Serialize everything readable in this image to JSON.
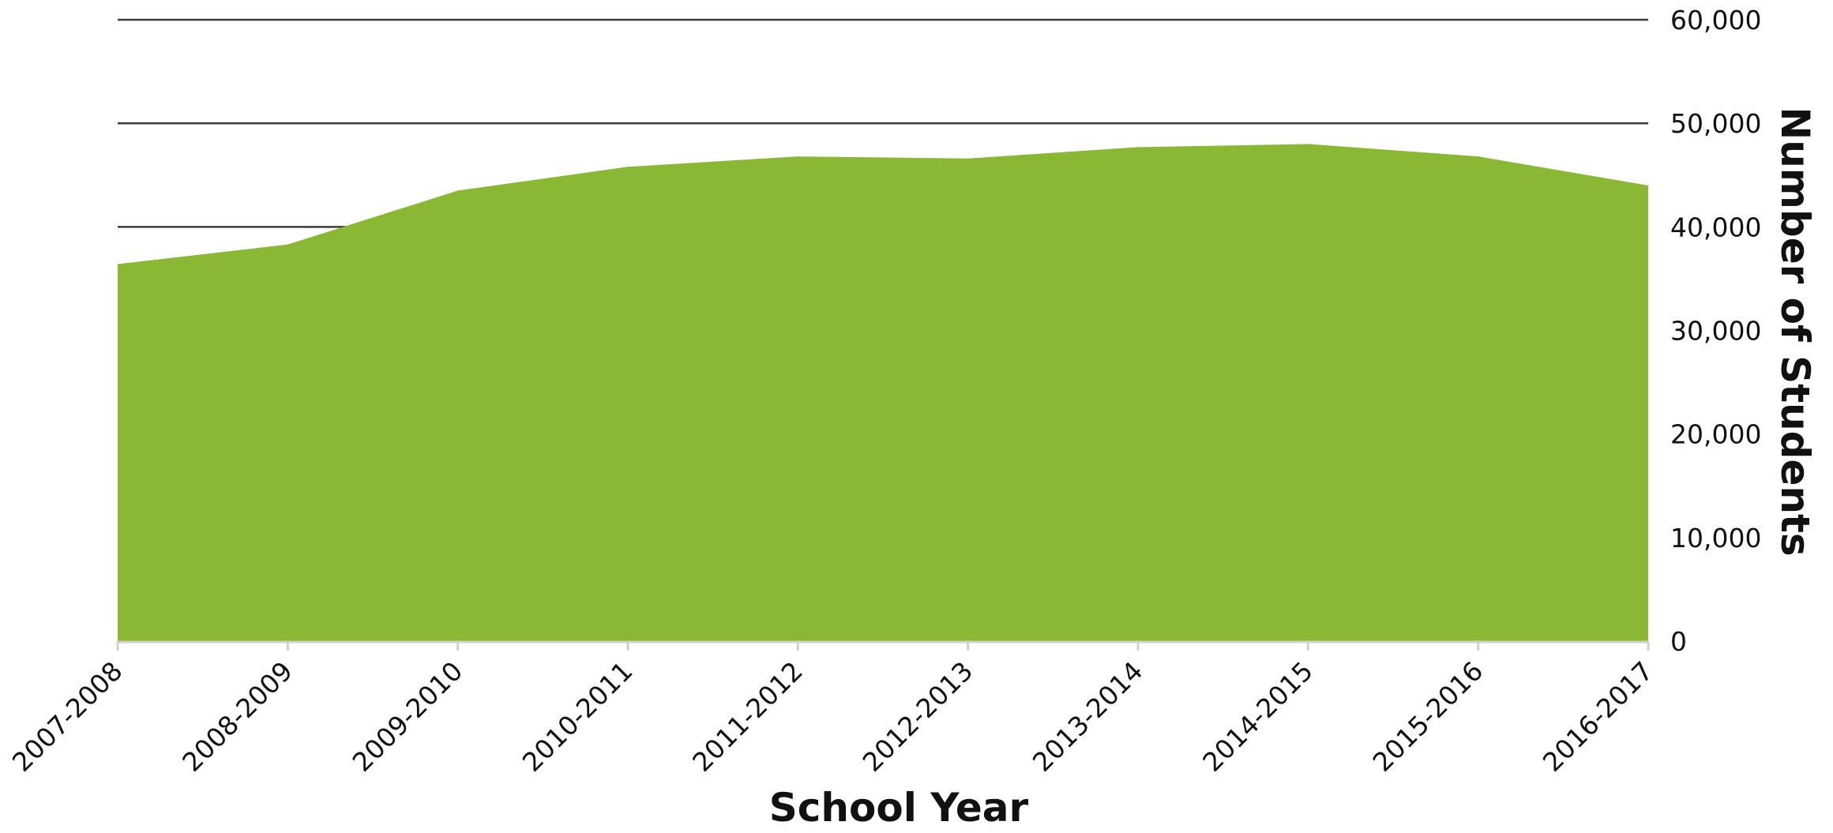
{
  "chart_data": {
    "type": "area",
    "categories": [
      "2007-2008",
      "2008-2009",
      "2009-2010",
      "2010-2011",
      "2011-2012",
      "2012-2013",
      "2013-2014",
      "2014-2015",
      "2015-2016",
      "2016-2017"
    ],
    "series": [
      {
        "values": [
          36400,
          38300,
          43500,
          45800,
          46800,
          46600,
          47700,
          48000,
          46800,
          44000
        ]
      }
    ],
    "xlabel": "School Year",
    "ylabel": "Number of Students",
    "ylim": [
      0,
      60000
    ],
    "yticks": [
      0,
      10000,
      20000,
      30000,
      40000,
      50000,
      60000
    ],
    "ytick_labels": [
      "0",
      "10,000",
      "20,000",
      "30,000",
      "40,000",
      "50,000",
      "60,000"
    ],
    "y_axis_side": "right",
    "grid": true,
    "colors": {
      "area_fill": "#8AB834",
      "gridline": "#3a3a3a",
      "baseline": "#d0d0d0"
    }
  }
}
